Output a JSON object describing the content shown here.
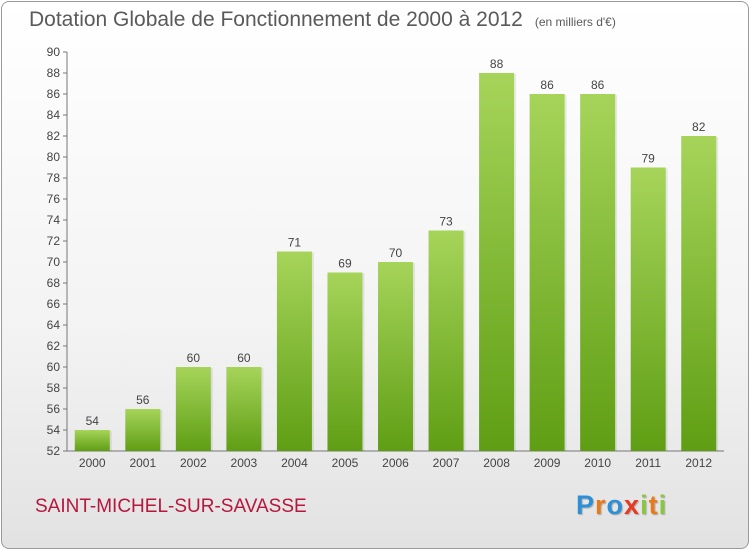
{
  "header": {
    "title": "Dotation Globale de Fonctionnement de 2000 à 2012",
    "unit": "(en milliers d'€)"
  },
  "footer": {
    "commune": "SAINT-MICHEL-SUR-SAVASSE",
    "logo_letters": [
      "P",
      "r",
      "o",
      "x",
      "i",
      "t",
      "i"
    ]
  },
  "colors": {
    "bar_light": "#a6d45a",
    "bar_dark": "#5f9e14",
    "title": "#5a5a5a",
    "commune": "#b8163c"
  },
  "chart_data": {
    "type": "bar",
    "title": "Dotation Globale de Fonctionnement de 2000 à 2012",
    "xlabel": "",
    "ylabel": "",
    "categories": [
      "2000",
      "2001",
      "2002",
      "2003",
      "2004",
      "2005",
      "2006",
      "2007",
      "2008",
      "2009",
      "2010",
      "2011",
      "2012"
    ],
    "values": [
      54,
      56,
      60,
      60,
      71,
      69,
      70,
      73,
      88,
      86,
      86,
      79,
      82
    ],
    "ylim": [
      52,
      90
    ],
    "yticks": [
      52,
      54,
      56,
      58,
      60,
      62,
      64,
      66,
      68,
      70,
      72,
      74,
      76,
      78,
      80,
      82,
      84,
      86,
      88,
      90
    ],
    "grid": false,
    "legend": "none"
  }
}
